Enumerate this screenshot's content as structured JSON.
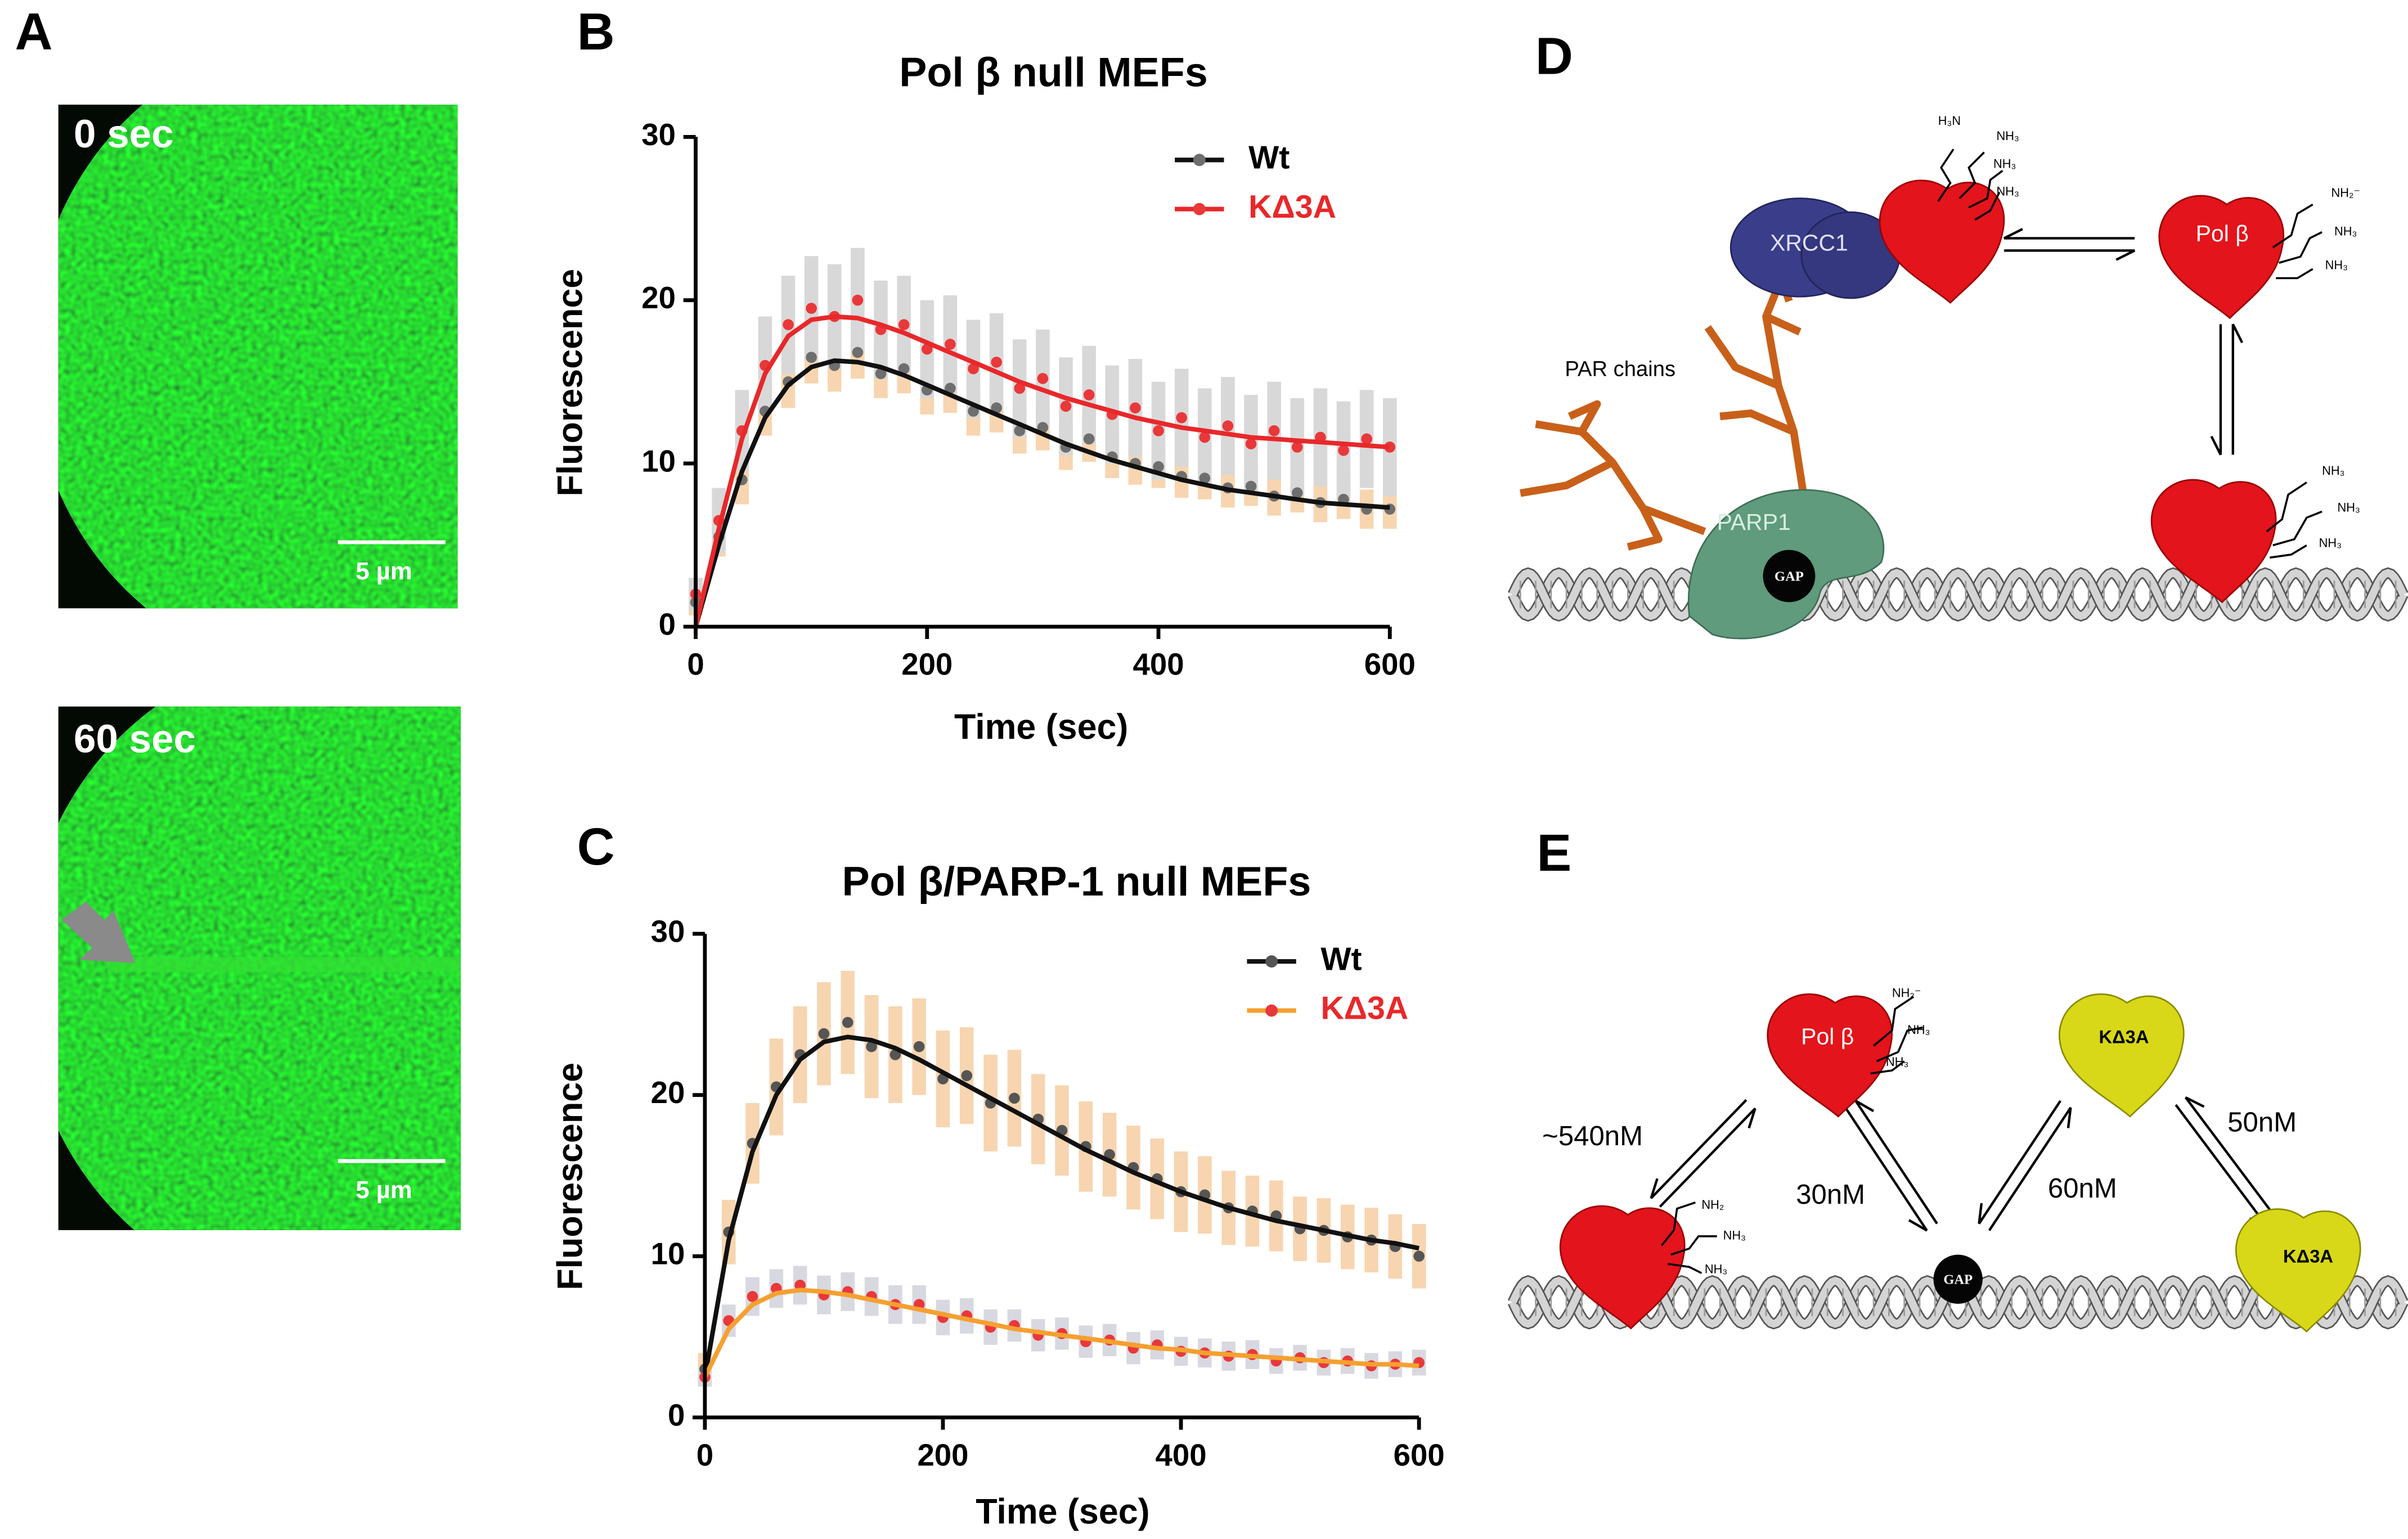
{
  "panel_labels": [
    "A",
    "B",
    "C",
    "D",
    "E"
  ],
  "panel_a": {
    "images": [
      {
        "time": "0 sec",
        "scale": "5 µm"
      },
      {
        "time": "60 sec",
        "scale": "5 µm"
      }
    ]
  },
  "chart_data": [
    {
      "type": "scatter",
      "title": "Pol β null MEFs",
      "x_label": "Time (sec)",
      "y_label": "Fluorescence",
      "x": [
        0,
        20,
        40,
        60,
        80,
        100,
        120,
        140,
        160,
        180,
        200,
        220,
        240,
        260,
        280,
        300,
        320,
        340,
        360,
        380,
        400,
        420,
        440,
        460,
        480,
        500,
        520,
        540,
        560,
        580,
        600
      ],
      "xlim": [
        0,
        600
      ],
      "xticks": [
        0,
        200,
        400,
        600
      ],
      "ylim": [
        0,
        30
      ],
      "yticks": [
        0,
        10,
        20,
        30
      ],
      "series": [
        {
          "name": "Wt",
          "color": "#6e6e6e",
          "line_color": "#111111",
          "error_color": "#f7d5b0",
          "values": [
            1.5,
            5.5,
            9,
            13.2,
            15,
            16.5,
            16,
            16.8,
            15.5,
            15.8,
            14.5,
            14.6,
            13.2,
            13.4,
            12,
            12.2,
            11,
            11.5,
            10.4,
            10,
            9.8,
            9.2,
            9.1,
            8.5,
            8.6,
            8,
            8.2,
            7.6,
            7.8,
            7.2,
            7.2
          ],
          "fit": [
            0,
            5,
            9.5,
            12.8,
            14.8,
            15.9,
            16.3,
            16.2,
            15.9,
            15.4,
            14.8,
            14.2,
            13.6,
            13,
            12.4,
            11.8,
            11.2,
            10.7,
            10.2,
            9.8,
            9.4,
            9,
            8.7,
            8.4,
            8.2,
            8,
            7.8,
            7.6,
            7.5,
            7.4,
            7.3
          ],
          "errors": [
            0.8,
            1.2,
            1.5,
            1.5,
            1.6,
            1.6,
            1.6,
            1.6,
            1.5,
            1.5,
            1.5,
            1.5,
            1.5,
            1.5,
            1.4,
            1.4,
            1.4,
            1.4,
            1.3,
            1.3,
            1.3,
            1.3,
            1.3,
            1.2,
            1.2,
            1.2,
            1.2,
            1.2,
            1.2,
            1.2,
            1.2
          ]
        },
        {
          "name": "KΔ3A",
          "color": "#e8383a",
          "line_color": "#e8282a",
          "error_color": "#d8d8d8",
          "values": [
            2,
            6.5,
            12,
            16,
            18.5,
            19.5,
            19,
            20,
            18.2,
            18.5,
            17,
            17.3,
            15.8,
            16.2,
            14.6,
            15.2,
            13.5,
            14.2,
            13,
            13.4,
            12,
            12.8,
            11.6,
            12.3,
            11.2,
            12,
            11,
            11.6,
            10.8,
            11.5,
            11
          ],
          "fit": [
            0,
            6,
            11.5,
            15.5,
            17.8,
            18.8,
            19,
            18.9,
            18.5,
            18,
            17.4,
            16.8,
            16.2,
            15.6,
            15,
            14.5,
            14,
            13.6,
            13.2,
            12.8,
            12.5,
            12.2,
            12,
            11.8,
            11.6,
            11.5,
            11.4,
            11.3,
            11.2,
            11.1,
            11
          ],
          "errors": [
            1,
            2,
            2.5,
            3,
            3,
            3.2,
            3.2,
            3.2,
            3,
            3,
            3,
            3,
            3,
            3,
            3,
            3,
            3,
            3,
            3,
            3,
            3,
            3,
            3,
            3,
            3,
            3,
            3,
            3,
            3,
            3,
            3
          ]
        }
      ]
    },
    {
      "type": "scatter",
      "title": "Pol β/PARP-1 null MEFs",
      "x_label": "Time (sec)",
      "y_label": "Fluorescence",
      "x": [
        0,
        20,
        40,
        60,
        80,
        100,
        120,
        140,
        160,
        180,
        200,
        220,
        240,
        260,
        280,
        300,
        320,
        340,
        360,
        380,
        400,
        420,
        440,
        460,
        480,
        500,
        520,
        540,
        560,
        580,
        600
      ],
      "xlim": [
        0,
        600
      ],
      "xticks": [
        0,
        200,
        400,
        600
      ],
      "ylim": [
        0,
        30
      ],
      "yticks": [
        0,
        10,
        20,
        30
      ],
      "series": [
        {
          "name": "Wt",
          "color": "#555555",
          "line_color": "#111111",
          "error_color": "#f7d5b0",
          "values": [
            3,
            11.5,
            17,
            20.5,
            22.5,
            23.8,
            24.5,
            23,
            22.5,
            23,
            21,
            21.2,
            19.5,
            19.8,
            18.5,
            17.8,
            16.8,
            16.3,
            15.5,
            14.8,
            14,
            13.8,
            13,
            12.8,
            12.5,
            11.7,
            11.6,
            11.2,
            11,
            10.6,
            10
          ],
          "fit": [
            2.5,
            11,
            16.5,
            20,
            22.2,
            23.3,
            23.6,
            23.4,
            22.9,
            22.2,
            21.4,
            20.6,
            19.8,
            19,
            18.2,
            17.4,
            16.6,
            15.9,
            15.2,
            14.6,
            14,
            13.5,
            13,
            12.6,
            12.2,
            11.9,
            11.6,
            11.3,
            11,
            10.8,
            10.5
          ],
          "errors": [
            1,
            2,
            2.5,
            3,
            3,
            3.2,
            3.2,
            3.2,
            3,
            3,
            3,
            3,
            3,
            3,
            2.8,
            2.8,
            2.8,
            2.6,
            2.6,
            2.5,
            2.5,
            2.4,
            2.3,
            2.2,
            2.2,
            2,
            2,
            2,
            2,
            2,
            2
          ]
        },
        {
          "name": "KΔ3A",
          "color": "#e8383a",
          "line_color": "#f5a030",
          "error_color": "#d8d8e0",
          "values": [
            2.5,
            6,
            7.5,
            8,
            8.2,
            7.6,
            7.8,
            7.5,
            7,
            7,
            6.2,
            6.3,
            5.6,
            5.7,
            5.1,
            5.2,
            4.7,
            4.8,
            4.3,
            4.5,
            4.1,
            4,
            3.8,
            3.9,
            3.5,
            3.7,
            3.4,
            3.5,
            3.2,
            3.3,
            3.4
          ],
          "fit": [
            2.5,
            5.5,
            7,
            7.7,
            7.9,
            7.8,
            7.6,
            7.3,
            7,
            6.7,
            6.4,
            6.1,
            5.8,
            5.5,
            5.3,
            5.1,
            4.9,
            4.7,
            4.5,
            4.3,
            4.2,
            4,
            3.9,
            3.8,
            3.7,
            3.6,
            3.5,
            3.4,
            3.3,
            3.3,
            3.2
          ],
          "errors": [
            0.6,
            1,
            1.2,
            1.2,
            1.2,
            1.2,
            1.2,
            1.2,
            1.2,
            1.2,
            1.1,
            1.1,
            1.1,
            1,
            1,
            1,
            1,
            1,
            1,
            0.9,
            0.9,
            0.9,
            0.9,
            0.9,
            0.8,
            0.8,
            0.8,
            0.8,
            0.8,
            0.8,
            0.8
          ]
        }
      ]
    }
  ],
  "panel_d": {
    "xrcc1": "XRCC1",
    "pol_b": "Pol β",
    "par_chains": "PAR chains",
    "parp1": "PARP1",
    "gap": "GAP",
    "amine_labels": [
      "H₃N",
      "NH₃",
      "NH₃",
      "NH₃",
      "NH₂⁻",
      "NH₃",
      "NH₃",
      "NH₃",
      "NH₃",
      "NH₃"
    ]
  },
  "panel_e": {
    "pol_b": "Pol β",
    "mutant": [
      "KΔ3A",
      "KΔ3A"
    ],
    "gap": "GAP",
    "affinities": [
      "~540nM",
      "30nM",
      "60nM",
      "50nM"
    ],
    "amine_labels": [
      "NH₂⁻",
      "NH₃",
      "NH₃",
      "NH₂",
      "NH₃",
      "NH₃"
    ]
  }
}
